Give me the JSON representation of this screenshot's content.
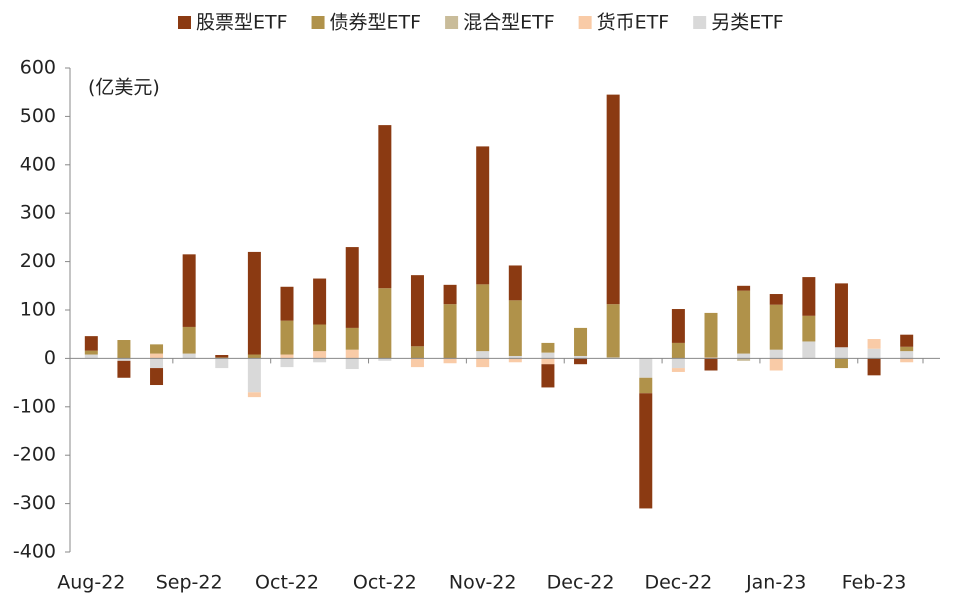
{
  "chart_data": {
    "type": "bar",
    "stacked": true,
    "annotation": "(亿美元)",
    "categories": [
      "Aug-22",
      null,
      null,
      "Sep-22",
      null,
      null,
      "Oct-22",
      null,
      null,
      "Oct-22",
      null,
      null,
      "Nov-22",
      null,
      null,
      "Dec-22",
      null,
      null,
      "Dec-22",
      null,
      null,
      "Jan-23",
      null,
      null,
      "Feb-23",
      null
    ],
    "series": [
      {
        "name": "股票型ETF",
        "color": "#8b3a12",
        "values": [
          30,
          -35,
          -35,
          150,
          5,
          212,
          70,
          95,
          167,
          337,
          147,
          40,
          285,
          72,
          -48,
          -12,
          433,
          -238,
          70,
          -25,
          10,
          22,
          80,
          132,
          -35,
          25
        ]
      },
      {
        "name": "债券型ETF",
        "color": "#b0924a",
        "values": [
          8,
          38,
          19,
          55,
          2,
          8,
          70,
          55,
          45,
          145,
          25,
          112,
          138,
          115,
          20,
          58,
          110,
          -32,
          32,
          92,
          130,
          93,
          53,
          -20,
          0,
          9
        ]
      },
      {
        "name": "混合型ETF",
        "color": "#c9bc9a",
        "values": [
          0,
          0,
          0,
          0,
          0,
          0,
          0,
          0,
          0,
          0,
          0,
          0,
          0,
          0,
          0,
          0,
          0,
          0,
          0,
          0,
          -5,
          0,
          0,
          0,
          0,
          0
        ]
      },
      {
        "name": "货币ETF",
        "color": "#f9cba7",
        "values": [
          0,
          0,
          10,
          0,
          0,
          -10,
          8,
          15,
          18,
          0,
          -18,
          -10,
          -18,
          -8,
          -12,
          0,
          0,
          0,
          -8,
          2,
          0,
          -25,
          0,
          0,
          20,
          -8
        ]
      },
      {
        "name": "另类ETF",
        "color": "#d9d9d9",
        "values": [
          8,
          -5,
          -20,
          10,
          -20,
          -70,
          -18,
          -8,
          -22,
          -5,
          0,
          0,
          15,
          5,
          12,
          5,
          2,
          -40,
          -20,
          0,
          10,
          18,
          35,
          23,
          20,
          15
        ]
      }
    ],
    "ylim": [
      -400,
      600
    ],
    "yticks": [
      -400,
      -300,
      -200,
      -100,
      0,
      100,
      200,
      300,
      400,
      500,
      600
    ]
  }
}
